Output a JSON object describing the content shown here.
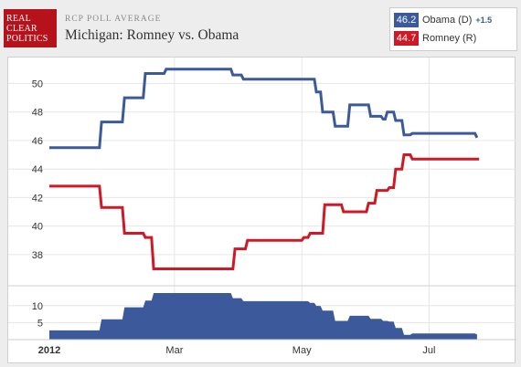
{
  "header": {
    "logo_lines": [
      "REAL",
      "CLEAR",
      "POLITICS"
    ],
    "supertitle": "RCP POLL AVERAGE",
    "title": "Michigan: Romney vs. Obama"
  },
  "legend": [
    {
      "value": "46.2",
      "name": "Obama (D)",
      "spread": "+1.5",
      "color": "#3c5a9b"
    },
    {
      "value": "44.7",
      "name": "Romney (R)",
      "spread": "",
      "color": "#cc1a26"
    }
  ],
  "chart_data": [
    {
      "type": "line",
      "title": "",
      "x_unit": "date",
      "xlim": [
        "2012-01-01",
        "2012-07-28"
      ],
      "ylim": [
        36.2,
        51.5
      ],
      "yticks": [
        38,
        40,
        42,
        44,
        46,
        48,
        50
      ],
      "xticks": [
        {
          "date": "2012-01-01",
          "label": "2012"
        },
        {
          "date": "2012-03-01",
          "label": "Mar"
        },
        {
          "date": "2012-05-01",
          "label": "May"
        },
        {
          "date": "2012-07-01",
          "label": "Jul"
        }
      ],
      "grid": true,
      "step": true,
      "series": [
        {
          "name": "Obama (D)",
          "color": "#3c5a9b",
          "points": [
            [
              "2012-01-01",
              45.5
            ],
            [
              "2012-01-25",
              45.5
            ],
            [
              "2012-01-26",
              47.3
            ],
            [
              "2012-02-05",
              47.3
            ],
            [
              "2012-02-06",
              49.0
            ],
            [
              "2012-02-15",
              49.0
            ],
            [
              "2012-02-16",
              50.7
            ],
            [
              "2012-02-25",
              50.7
            ],
            [
              "2012-02-26",
              51.0
            ],
            [
              "2012-03-28",
              51.0
            ],
            [
              "2012-03-29",
              50.6
            ],
            [
              "2012-04-02",
              50.6
            ],
            [
              "2012-04-03",
              50.3
            ],
            [
              "2012-04-28",
              50.3
            ],
            [
              "2012-05-07",
              50.3
            ],
            [
              "2012-05-08",
              49.4
            ],
            [
              "2012-05-10",
              49.4
            ],
            [
              "2012-05-11",
              48.0
            ],
            [
              "2012-05-16",
              48.0
            ],
            [
              "2012-05-17",
              47.0
            ],
            [
              "2012-05-23",
              47.0
            ],
            [
              "2012-05-24",
              48.5
            ],
            [
              "2012-06-02",
              48.5
            ],
            [
              "2012-06-03",
              47.7
            ],
            [
              "2012-06-08",
              47.7
            ],
            [
              "2012-06-09",
              47.5
            ],
            [
              "2012-06-10",
              47.5
            ],
            [
              "2012-06-11",
              48.0
            ],
            [
              "2012-06-14",
              48.0
            ],
            [
              "2012-06-15",
              47.4
            ],
            [
              "2012-06-18",
              47.4
            ],
            [
              "2012-06-19",
              46.4
            ],
            [
              "2012-06-22",
              46.4
            ],
            [
              "2012-06-23",
              46.5
            ],
            [
              "2012-07-23",
              46.5
            ],
            [
              "2012-07-24",
              46.2
            ]
          ]
        },
        {
          "name": "Romney (R)",
          "color": "#cc1a26",
          "points": [
            [
              "2012-01-01",
              42.8
            ],
            [
              "2012-01-25",
              42.8
            ],
            [
              "2012-01-26",
              41.3
            ],
            [
              "2012-02-05",
              41.3
            ],
            [
              "2012-02-06",
              39.5
            ],
            [
              "2012-02-15",
              39.5
            ],
            [
              "2012-02-16",
              39.2
            ],
            [
              "2012-02-19",
              39.2
            ],
            [
              "2012-02-20",
              37.0
            ],
            [
              "2012-03-29",
              37.0
            ],
            [
              "2012-03-30",
              38.4
            ],
            [
              "2012-04-04",
              38.4
            ],
            [
              "2012-04-05",
              39.0
            ],
            [
              "2012-04-28",
              39.0
            ],
            [
              "2012-05-01",
              39.0
            ],
            [
              "2012-05-02",
              39.2
            ],
            [
              "2012-05-04",
              39.2
            ],
            [
              "2012-05-05",
              39.5
            ],
            [
              "2012-05-11",
              39.5
            ],
            [
              "2012-05-12",
              41.5
            ],
            [
              "2012-05-20",
              41.5
            ],
            [
              "2012-05-21",
              41.0
            ],
            [
              "2012-06-01",
              41.0
            ],
            [
              "2012-06-02",
              41.6
            ],
            [
              "2012-06-05",
              41.6
            ],
            [
              "2012-06-06",
              42.5
            ],
            [
              "2012-06-11",
              42.5
            ],
            [
              "2012-06-12",
              42.7
            ],
            [
              "2012-06-14",
              42.7
            ],
            [
              "2012-06-15",
              44.0
            ],
            [
              "2012-06-18",
              44.0
            ],
            [
              "2012-06-19",
              45.0
            ],
            [
              "2012-06-22",
              45.0
            ],
            [
              "2012-06-23",
              44.7
            ],
            [
              "2012-07-25",
              44.7
            ]
          ]
        }
      ]
    },
    {
      "type": "area",
      "title": "",
      "x_unit": "date",
      "xlim": [
        "2012-01-01",
        "2012-07-28"
      ],
      "ylim": [
        0,
        14.5
      ],
      "yticks": [
        5,
        10
      ],
      "grid": true,
      "step": true,
      "series": [
        {
          "name": "",
          "color": "#3c5a9b",
          "points": [
            [
              "2012-01-01",
              2.7
            ],
            [
              "2012-01-25",
              2.7
            ],
            [
              "2012-01-26",
              6.0
            ],
            [
              "2012-02-05",
              6.0
            ],
            [
              "2012-02-06",
              9.5
            ],
            [
              "2012-02-15",
              9.5
            ],
            [
              "2012-02-16",
              11.5
            ],
            [
              "2012-02-19",
              11.5
            ],
            [
              "2012-02-20",
              13.7
            ],
            [
              "2012-03-28",
              13.7
            ],
            [
              "2012-03-29",
              12.2
            ],
            [
              "2012-04-02",
              12.2
            ],
            [
              "2012-04-03",
              11.3
            ],
            [
              "2012-05-04",
              11.3
            ],
            [
              "2012-05-05",
              10.8
            ],
            [
              "2012-05-07",
              10.8
            ],
            [
              "2012-05-08",
              9.9
            ],
            [
              "2012-05-10",
              9.9
            ],
            [
              "2012-05-11",
              8.5
            ],
            [
              "2012-05-16",
              8.5
            ],
            [
              "2012-05-17",
              5.5
            ],
            [
              "2012-05-23",
              5.5
            ],
            [
              "2012-05-24",
              7.0
            ],
            [
              "2012-06-02",
              7.0
            ],
            [
              "2012-06-03",
              6.1
            ],
            [
              "2012-06-08",
              6.1
            ],
            [
              "2012-06-09",
              5.5
            ],
            [
              "2012-06-11",
              5.5
            ],
            [
              "2012-06-12",
              5.3
            ],
            [
              "2012-06-14",
              5.3
            ],
            [
              "2012-06-15",
              3.4
            ],
            [
              "2012-06-18",
              3.4
            ],
            [
              "2012-06-19",
              1.4
            ],
            [
              "2012-06-22",
              1.4
            ],
            [
              "2012-06-23",
              1.8
            ],
            [
              "2012-07-23",
              1.8
            ],
            [
              "2012-07-24",
              1.5
            ]
          ]
        }
      ]
    }
  ]
}
